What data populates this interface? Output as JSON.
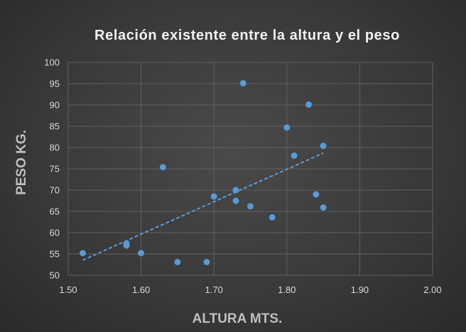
{
  "chart_data": {
    "type": "scatter",
    "title": "Relación existente entre la altura y el peso",
    "xlabel": "ALTURA MTS.",
    "ylabel": "PESO KG.",
    "xlim": [
      1.5,
      2.0
    ],
    "ylim": [
      50,
      100
    ],
    "xticks": [
      "1.50",
      "1.60",
      "1.70",
      "1.80",
      "1.90",
      "2.00"
    ],
    "yticks": [
      "50",
      "55",
      "60",
      "65",
      "70",
      "75",
      "80",
      "85",
      "90",
      "95",
      "100"
    ],
    "grid": true,
    "point_color": "#5b9bd5",
    "trendline": {
      "type": "linear",
      "style": "dashed",
      "x_from": 1.52,
      "x_to": 1.85
    },
    "points": [
      {
        "x": 1.52,
        "y": 55.2
      },
      {
        "x": 1.58,
        "y": 57.5
      },
      {
        "x": 1.58,
        "y": 57.0
      },
      {
        "x": 1.6,
        "y": 55.2
      },
      {
        "x": 1.63,
        "y": 75.4
      },
      {
        "x": 1.65,
        "y": 53.1
      },
      {
        "x": 1.69,
        "y": 53.1
      },
      {
        "x": 1.7,
        "y": 68.5
      },
      {
        "x": 1.73,
        "y": 70.0
      },
      {
        "x": 1.73,
        "y": 67.5
      },
      {
        "x": 1.74,
        "y": 95.1
      },
      {
        "x": 1.75,
        "y": 66.2
      },
      {
        "x": 1.78,
        "y": 63.6
      },
      {
        "x": 1.8,
        "y": 84.7
      },
      {
        "x": 1.81,
        "y": 78.1
      },
      {
        "x": 1.83,
        "y": 90.1
      },
      {
        "x": 1.84,
        "y": 69.0
      },
      {
        "x": 1.85,
        "y": 80.4
      },
      {
        "x": 1.85,
        "y": 65.9
      }
    ]
  }
}
